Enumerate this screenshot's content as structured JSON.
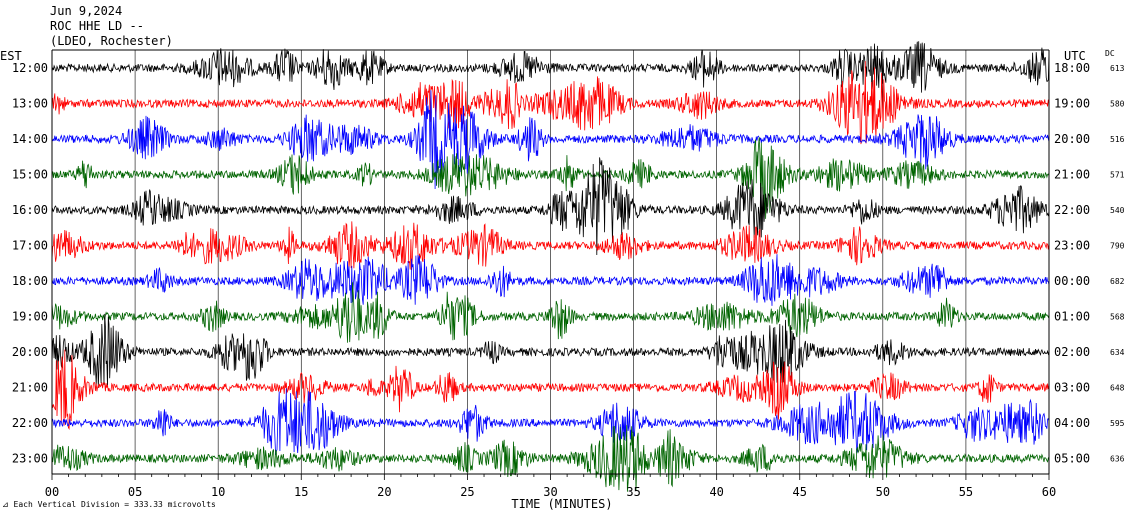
{
  "header": {
    "date": "Jun 9,2024",
    "station": "ROC HHE LD --",
    "location": "(LDEO, Rochester)"
  },
  "labels": {
    "left_tz": "EST",
    "right_tz": "UTC",
    "dc": "DC",
    "footer_note": "Each Vertical Division =  333.33 microvolts"
  },
  "colors": {
    "trace_cycle": [
      "#000000",
      "#ff0000",
      "#0000ff",
      "#006400"
    ],
    "axis": "#000000",
    "background": "#ffffff"
  },
  "chart_data": {
    "type": "line",
    "title": "",
    "xlabel": "TIME (MINUTES)",
    "ylabel": "",
    "xlim": [
      0,
      60
    ],
    "x_ticks": [
      "00",
      "05",
      "10",
      "15",
      "20",
      "25",
      "30",
      "35",
      "40",
      "45",
      "50",
      "55",
      "60"
    ],
    "grid": true,
    "legend": "none",
    "rows": [
      {
        "est": "12:00",
        "utc": "18:00",
        "dc": "613"
      },
      {
        "est": "13:00",
        "utc": "19:00",
        "dc": "580"
      },
      {
        "est": "14:00",
        "utc": "20:00",
        "dc": "516"
      },
      {
        "est": "15:00",
        "utc": "21:00",
        "dc": "571"
      },
      {
        "est": "16:00",
        "utc": "22:00",
        "dc": "540"
      },
      {
        "est": "17:00",
        "utc": "23:00",
        "dc": "790"
      },
      {
        "est": "18:00",
        "utc": "00:00",
        "dc": "682"
      },
      {
        "est": "19:00",
        "utc": "01:00",
        "dc": "568"
      },
      {
        "est": "20:00",
        "utc": "02:00",
        "dc": "634"
      },
      {
        "est": "21:00",
        "utc": "03:00",
        "dc": "648"
      },
      {
        "est": "22:00",
        "utc": "04:00",
        "dc": "595"
      },
      {
        "est": "23:00",
        "utc": "05:00",
        "dc": "636"
      }
    ]
  }
}
